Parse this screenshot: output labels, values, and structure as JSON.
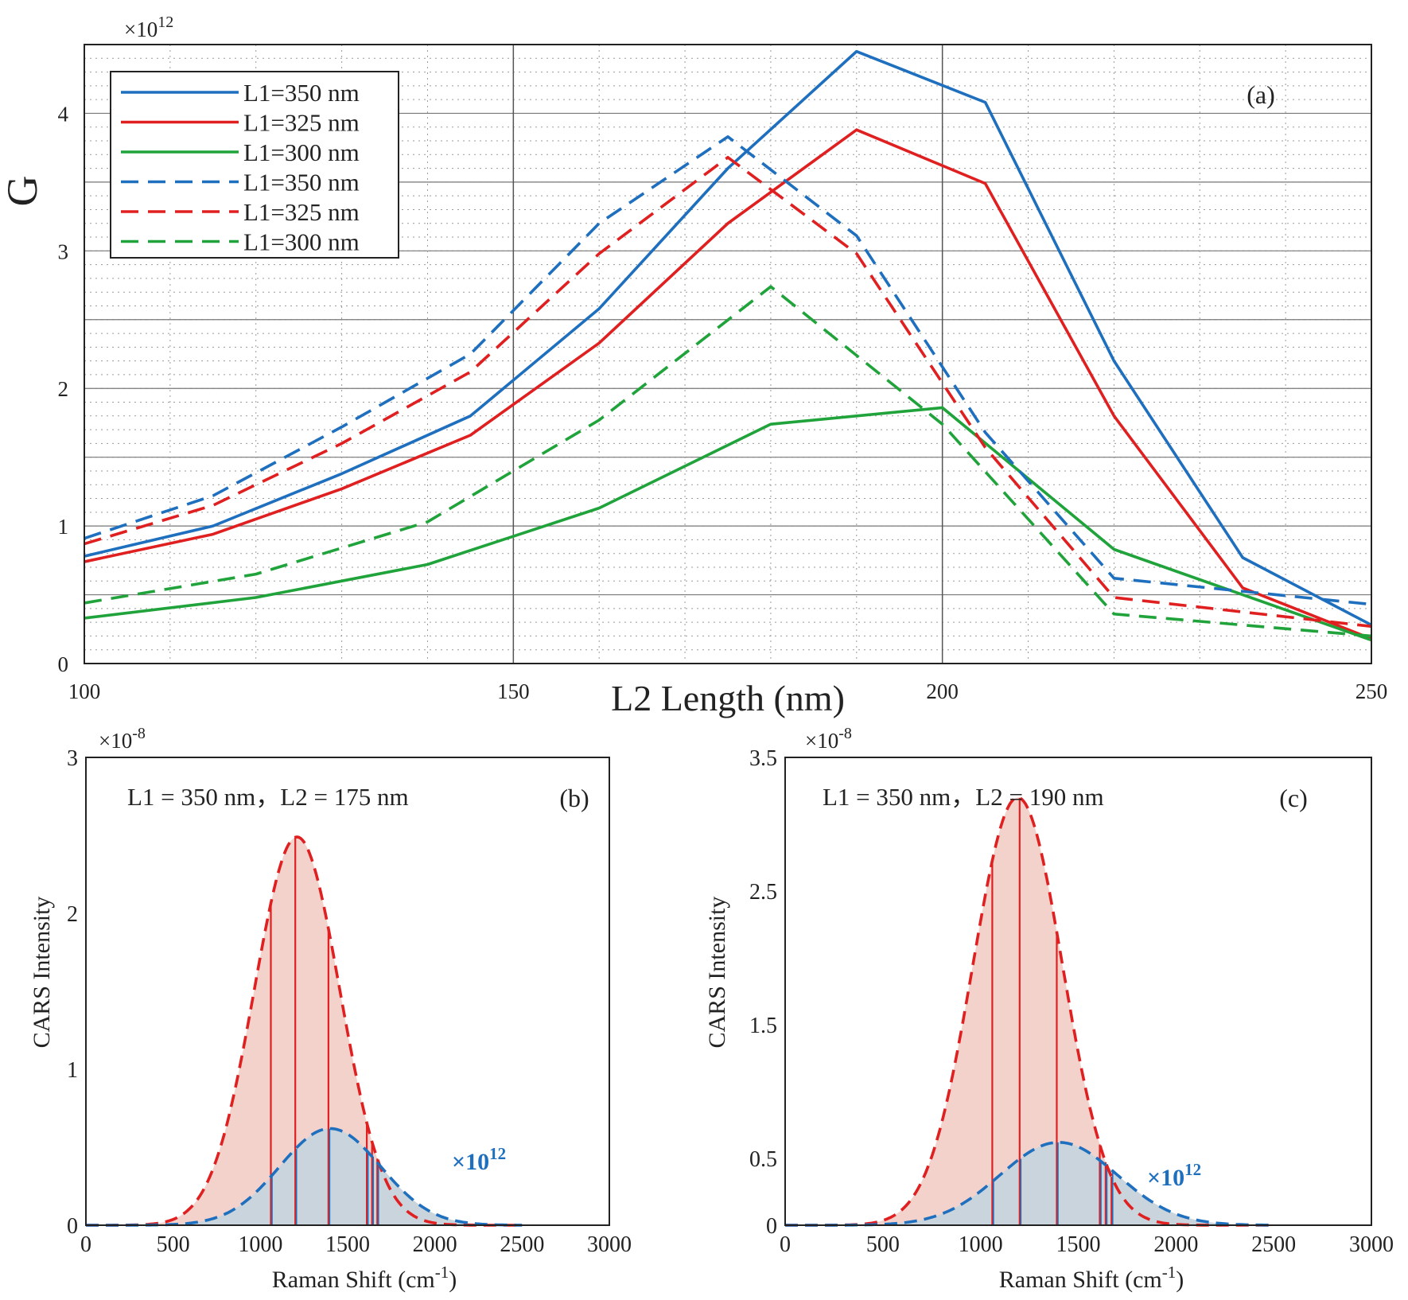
{
  "colors": {
    "blue": "#1f6fbf",
    "red": "#e02020",
    "green": "#1fa33a",
    "red_fill": "#f4d2cc",
    "blue_fill": "#c9d4dc"
  },
  "chart_data": [
    {
      "type": "line",
      "panel": "(a)",
      "xlabel": "L2 Length (nm)",
      "ylabel": "G",
      "y_multiplier": "×10",
      "y_exponent": "12",
      "xlim": [
        100,
        250
      ],
      "ylim": [
        0,
        4.5
      ],
      "xticks": [
        "100",
        "150",
        "200",
        "250"
      ],
      "yticks": [
        "0",
        "1",
        "2",
        "3",
        "4"
      ],
      "xtick_values": [
        100,
        150,
        200,
        250
      ],
      "ytick_values": [
        0,
        1,
        2,
        3,
        4
      ],
      "grid": true,
      "legend_position": "top-left",
      "series": [
        {
          "name": "L1=350 nm",
          "style": "solid",
          "color": "blue",
          "x": [
            100,
            115,
            130,
            145,
            160,
            175,
            190,
            205,
            220,
            235,
            250
          ],
          "y": [
            0.78,
            1.0,
            1.38,
            1.8,
            2.58,
            3.6,
            4.45,
            4.08,
            2.2,
            0.77,
            0.28
          ]
        },
        {
          "name": "L1=325 nm",
          "style": "solid",
          "color": "red",
          "x": [
            100,
            115,
            130,
            145,
            160,
            175,
            190,
            205,
            220,
            235,
            250
          ],
          "y": [
            0.74,
            0.94,
            1.27,
            1.66,
            2.33,
            3.2,
            3.88,
            3.49,
            1.8,
            0.55,
            0.18
          ]
        },
        {
          "name": "L1=300 nm",
          "style": "solid",
          "color": "green",
          "x": [
            100,
            120,
            140,
            160,
            180,
            200,
            220,
            250
          ],
          "y": [
            0.33,
            0.48,
            0.72,
            1.13,
            1.74,
            1.86,
            0.83,
            0.17
          ]
        },
        {
          "name": "L1=350 nm",
          "style": "dashed",
          "color": "blue",
          "x": [
            100,
            115,
            130,
            145,
            160,
            175,
            190,
            205,
            220,
            250
          ],
          "y": [
            0.91,
            1.22,
            1.72,
            2.25,
            3.2,
            3.83,
            3.11,
            1.68,
            0.62,
            0.43
          ]
        },
        {
          "name": "L1=325 nm",
          "style": "dashed",
          "color": "red",
          "x": [
            100,
            115,
            130,
            145,
            160,
            175,
            190,
            205,
            220,
            250
          ],
          "y": [
            0.87,
            1.15,
            1.6,
            2.12,
            2.98,
            3.68,
            2.98,
            1.57,
            0.48,
            0.27
          ]
        },
        {
          "name": "L1=300 nm",
          "style": "dashed",
          "color": "green",
          "x": [
            100,
            120,
            140,
            160,
            180,
            200,
            220,
            250
          ],
          "y": [
            0.44,
            0.65,
            1.03,
            1.77,
            2.74,
            1.74,
            0.36,
            0.2
          ]
        }
      ]
    },
    {
      "type": "area",
      "panel": "(b)",
      "annotation": "L1 = 350 nm，L2 = 175 nm",
      "xlabel": "Raman Shift (cm",
      "xlabel_sup": "-1",
      "xlabel_end": ")",
      "ylabel": "CARS Intensity",
      "y_multiplier": "×10",
      "y_exponent": "-8",
      "series_multiplier": "×10",
      "series_exponent": "12",
      "xlim": [
        0,
        3000
      ],
      "ylim": [
        0,
        3
      ],
      "xticks": [
        "0",
        "500",
        "1000",
        "1500",
        "2000",
        "2500",
        "3000"
      ],
      "xtick_values": [
        0,
        500,
        1000,
        1500,
        2000,
        2500,
        3000
      ],
      "yticks": [
        "0",
        "1",
        "2",
        "3"
      ],
      "ytick_values": [
        0,
        1,
        2,
        3
      ],
      "envelopes": [
        {
          "name": "red-envelope",
          "color": "red",
          "center": 1210,
          "sigma": 245,
          "peak": 2.49
        },
        {
          "name": "blue-envelope",
          "color": "blue",
          "center": 1400,
          "sigma": 290,
          "peak": 0.62
        }
      ],
      "peak_lines_x": [
        1060,
        1200,
        1390,
        1610,
        1640,
        1670
      ]
    },
    {
      "type": "area",
      "panel": "(c)",
      "annotation": "L1 = 350 nm，L2 = 190 nm",
      "xlabel": "Raman Shift (cm",
      "xlabel_sup": "-1",
      "xlabel_end": ")",
      "ylabel": "CARS Intensity",
      "y_multiplier": "×10",
      "y_exponent": "-8",
      "series_multiplier": "×10",
      "series_exponent": "12",
      "xlim": [
        0,
        3000
      ],
      "ylim": [
        0,
        3.5
      ],
      "xticks": [
        "0",
        "500",
        "1000",
        "1500",
        "2000",
        "2500",
        "3000"
      ],
      "xtick_values": [
        0,
        500,
        1000,
        1500,
        2000,
        2500,
        3000
      ],
      "yticks": [
        "0",
        "0.5",
        "1.5",
        "2.5",
        "3.5"
      ],
      "ytick_values": [
        0,
        0.5,
        1.5,
        2.5,
        3.5
      ],
      "envelopes": [
        {
          "name": "red-envelope",
          "color": "red",
          "center": 1190,
          "sigma": 230,
          "peak": 3.2
        },
        {
          "name": "blue-envelope",
          "color": "blue",
          "center": 1400,
          "sigma": 300,
          "peak": 0.62
        }
      ],
      "peak_lines_x": [
        1060,
        1200,
        1390,
        1610,
        1640,
        1670
      ]
    }
  ]
}
